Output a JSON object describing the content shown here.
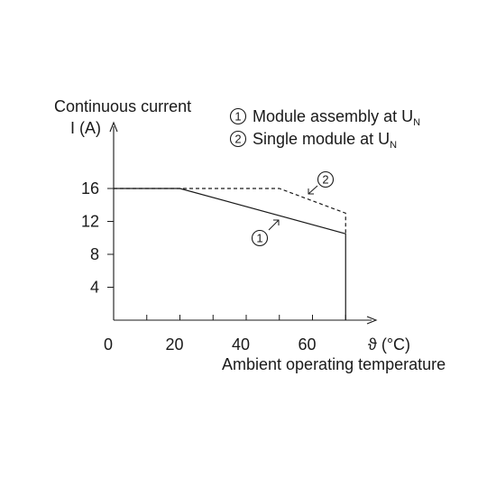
{
  "chart_data": {
    "type": "line",
    "ylabel_line1": "Continuous current",
    "ylabel_line2": "I (A)",
    "xlabel": "Ambient operating temperature",
    "x_unit_label": "ϑ (°C)",
    "xlim": [
      0,
      80
    ],
    "ylim": [
      0,
      20
    ],
    "x_ticks": [
      0,
      10,
      20,
      30,
      40,
      50,
      60,
      70
    ],
    "x_tick_labels": [
      "0",
      "20",
      "40",
      "60"
    ],
    "y_ticks": [
      4,
      8,
      12,
      16
    ],
    "y_tick_labels": [
      "16",
      "12",
      "8",
      "4"
    ],
    "grid": false,
    "legend_position": "top-right",
    "series": [
      {
        "id": "1",
        "name": "Module assembly at U",
        "name_subscript": "N",
        "style": "solid",
        "x": [
          0,
          20,
          70,
          70
        ],
        "y": [
          16,
          16,
          10.5,
          0
        ]
      },
      {
        "id": "2",
        "name": "Single module at U",
        "name_subscript": "N",
        "style": "dashed",
        "x": [
          0,
          20,
          50,
          70,
          70
        ],
        "y": [
          16,
          16,
          16,
          13,
          10.5
        ]
      }
    ],
    "annotations": [
      {
        "marker": "1",
        "series": "1"
      },
      {
        "marker": "2",
        "series": "2"
      }
    ]
  },
  "colors": {
    "line": "#1a1a1a",
    "background": "#ffffff"
  }
}
